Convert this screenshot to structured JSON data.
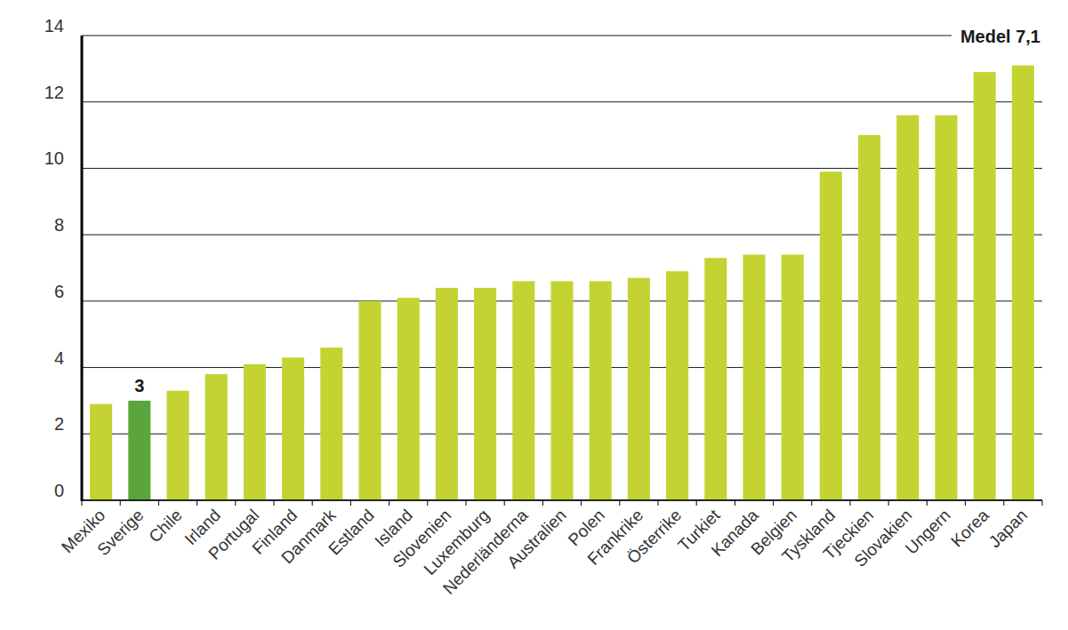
{
  "chart_data": {
    "type": "bar",
    "categories": [
      "Mexiko",
      "Sverige",
      "Chile",
      "Irland",
      "Portugal",
      "Finland",
      "Danmark",
      "Estland",
      "Island",
      "Slovenien",
      "Luxemburg",
      "Nederländerna",
      "Australien",
      "Polen",
      "Frankrike",
      "Österrike",
      "Turkiet",
      "Kanada",
      "Belgien",
      "Tyskland",
      "Tjeckien",
      "Slovakien",
      "Ungern",
      "Korea",
      "Japan"
    ],
    "values": [
      2.9,
      3,
      3.3,
      3.8,
      4.1,
      4.3,
      4.6,
      6.0,
      6.1,
      6.4,
      6.4,
      6.6,
      6.6,
      6.6,
      6.7,
      6.9,
      7.3,
      7.4,
      7.4,
      9.9,
      11.0,
      11.6,
      11.6,
      12.9,
      13.1
    ],
    "colors": [
      "#c3d432",
      "#5aa63c",
      "#c3d432",
      "#c3d432",
      "#c3d432",
      "#c3d432",
      "#c3d432",
      "#c3d432",
      "#c3d432",
      "#c3d432",
      "#c3d432",
      "#c3d432",
      "#c3d432",
      "#c3d432",
      "#c3d432",
      "#c3d432",
      "#c3d432",
      "#c3d432",
      "#c3d432",
      "#c3d432",
      "#c3d432",
      "#c3d432",
      "#c3d432",
      "#c3d432",
      "#c3d432"
    ],
    "ylim": [
      0,
      14
    ],
    "yticks": [
      0,
      2,
      4,
      6,
      8,
      10,
      12,
      14
    ],
    "grid": true,
    "annotations": [
      {
        "text": "3",
        "category": "Sverige"
      },
      {
        "text": "Medel 7,1"
      }
    ]
  }
}
